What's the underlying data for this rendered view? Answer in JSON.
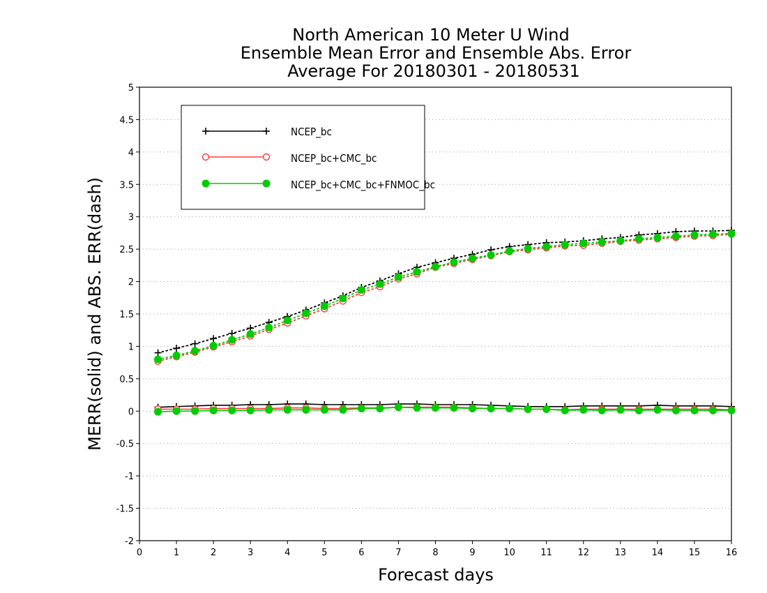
{
  "chart_data": {
    "type": "line",
    "title_lines": [
      "North American 10 Meter U Wind",
      "Ensemble Mean Error and Ensemble Abs. Error",
      "Average For 20180301 - 20180531"
    ],
    "xlabel": "Forecast days",
    "ylabel": "MERR(solid) and ABS. ERR(dash)",
    "xlim": [
      0,
      16
    ],
    "ylim": [
      -2,
      5
    ],
    "x_ticks": [
      "0",
      "1",
      "2",
      "3",
      "4",
      "5",
      "6",
      "7",
      "8",
      "9",
      "10",
      "11",
      "12",
      "13",
      "14",
      "15",
      "16"
    ],
    "y_ticks": [
      "-2",
      "-1.5",
      "-1",
      "-0.5",
      "0",
      "0.5",
      "1",
      "1.5",
      "2",
      "2.5",
      "3",
      "3.5",
      "4",
      "4.5",
      "5"
    ],
    "grid": true,
    "legend_position": "top-left",
    "x": [
      0.5,
      1,
      1.5,
      2,
      2.5,
      3,
      3.5,
      4,
      4.5,
      5,
      5.5,
      6,
      6.5,
      7,
      7.5,
      8,
      8.5,
      9,
      9.5,
      10,
      10.5,
      11,
      11.5,
      12,
      12.5,
      13,
      13.5,
      14,
      14.5,
      15,
      15.5,
      16
    ],
    "series": [
      {
        "name": "NCEP_bc",
        "color": "#000000",
        "marker": "plus",
        "merr": [
          0.06,
          0.07,
          0.08,
          0.09,
          0.09,
          0.1,
          0.1,
          0.11,
          0.11,
          0.1,
          0.1,
          0.1,
          0.1,
          0.11,
          0.11,
          0.1,
          0.1,
          0.1,
          0.09,
          0.08,
          0.07,
          0.07,
          0.07,
          0.08,
          0.08,
          0.08,
          0.08,
          0.09,
          0.08,
          0.08,
          0.08,
          0.07
        ],
        "abs_err": [
          0.9,
          0.97,
          1.04,
          1.12,
          1.2,
          1.28,
          1.37,
          1.46,
          1.56,
          1.67,
          1.78,
          1.91,
          2.01,
          2.12,
          2.22,
          2.29,
          2.36,
          2.42,
          2.49,
          2.54,
          2.57,
          2.6,
          2.61,
          2.63,
          2.66,
          2.68,
          2.72,
          2.74,
          2.77,
          2.78,
          2.78,
          2.79
        ]
      },
      {
        "name": "NCEP_bc+CMC_bc",
        "color": "#ff3b3b",
        "marker": "open-circle",
        "merr": [
          0.03,
          0.03,
          0.03,
          0.04,
          0.04,
          0.04,
          0.04,
          0.05,
          0.05,
          0.04,
          0.04,
          0.05,
          0.05,
          0.06,
          0.06,
          0.06,
          0.06,
          0.05,
          0.04,
          0.04,
          0.03,
          0.03,
          0.02,
          0.03,
          0.03,
          0.03,
          0.03,
          0.03,
          0.03,
          0.03,
          0.03,
          0.02
        ],
        "abs_err": [
          0.77,
          0.84,
          0.91,
          0.99,
          1.07,
          1.16,
          1.26,
          1.36,
          1.47,
          1.58,
          1.7,
          1.83,
          1.92,
          2.04,
          2.12,
          2.22,
          2.28,
          2.34,
          2.4,
          2.46,
          2.49,
          2.52,
          2.55,
          2.56,
          2.59,
          2.62,
          2.64,
          2.66,
          2.68,
          2.7,
          2.71,
          2.73
        ]
      },
      {
        "name": "NCEP_bc+CMC_bc+FNMOC_bc",
        "color": "#00cc00",
        "marker": "filled-circle",
        "merr": [
          -0.01,
          0.0,
          0.0,
          0.01,
          0.01,
          0.01,
          0.02,
          0.02,
          0.02,
          0.02,
          0.02,
          0.04,
          0.04,
          0.06,
          0.05,
          0.05,
          0.05,
          0.04,
          0.04,
          0.04,
          0.03,
          0.03,
          0.01,
          0.02,
          0.01,
          0.02,
          0.01,
          0.02,
          0.01,
          0.01,
          0.01,
          0.01
        ],
        "abs_err": [
          0.8,
          0.86,
          0.93,
          1.01,
          1.1,
          1.19,
          1.29,
          1.4,
          1.51,
          1.62,
          1.74,
          1.87,
          1.96,
          2.07,
          2.15,
          2.23,
          2.3,
          2.36,
          2.41,
          2.47,
          2.51,
          2.54,
          2.57,
          2.59,
          2.61,
          2.63,
          2.66,
          2.68,
          2.7,
          2.72,
          2.73,
          2.74
        ]
      }
    ]
  }
}
